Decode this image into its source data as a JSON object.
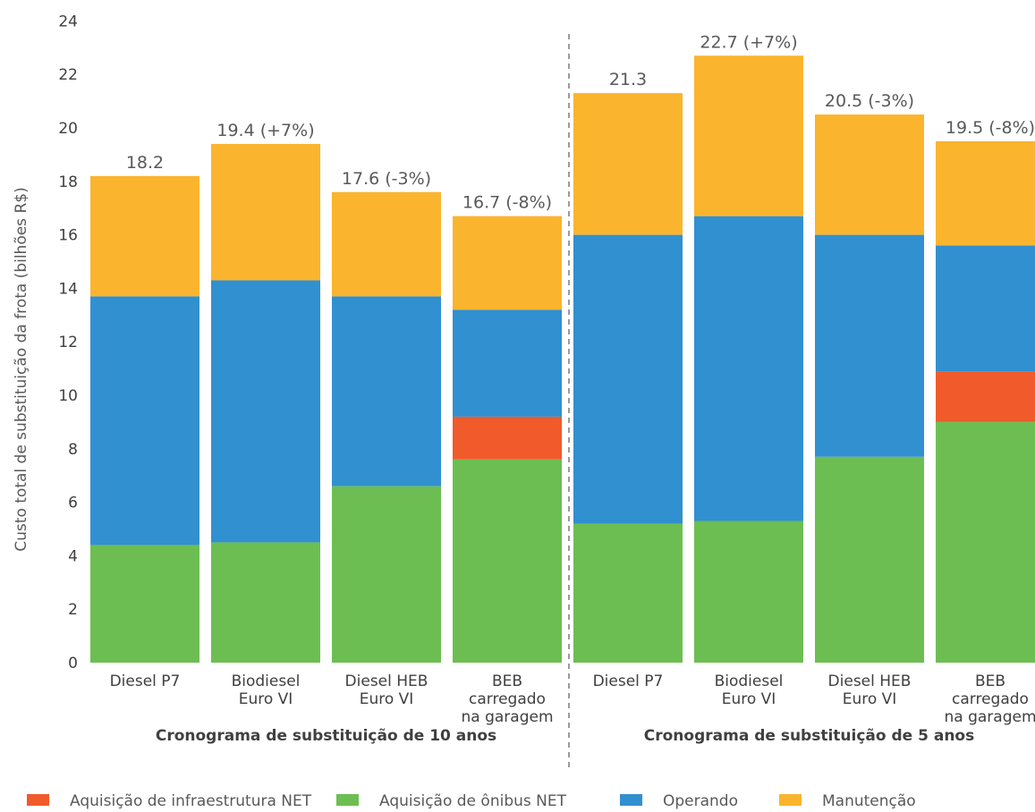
{
  "chart_data": {
    "type": "bar",
    "stacked": true,
    "ylabel": "Custo total de substituição da frota (bilhões R$)",
    "ylim": [
      0,
      24
    ],
    "yticks": [
      0,
      2,
      4,
      6,
      8,
      10,
      12,
      14,
      16,
      18,
      20,
      22,
      24
    ],
    "grid": false,
    "legend_position": "bottom",
    "categories": [
      [
        "Diesel P7"
      ],
      [
        "Biodiesel",
        "Euro VI"
      ],
      [
        "Diesel HEB",
        "Euro VI"
      ],
      [
        "BEB",
        "carregado",
        "na garagem"
      ],
      [
        "Diesel P7"
      ],
      [
        "Biodiesel",
        "Euro VI"
      ],
      [
        "Diesel HEB",
        "Euro VI"
      ],
      [
        "BEB",
        "carregado",
        "na garagem"
      ]
    ],
    "groups": [
      {
        "label": "Cronograma de substituição de 10 anos",
        "count": 4
      },
      {
        "label": "Cronograma de substituição de 5 anos",
        "count": 4
      }
    ],
    "totals": [
      "18.2",
      "19.4 (+7%)",
      "17.6 (-3%)",
      "16.7 (-8%)",
      "21.3",
      "22.7 (+7%)",
      "20.5 (-3%)",
      "19.5 (-8%)"
    ],
    "series": [
      {
        "name": "Aquisição de ônibus NET",
        "color": "#6dbe52",
        "values": [
          4.4,
          4.5,
          6.6,
          7.6,
          5.2,
          5.3,
          7.7,
          9.0
        ]
      },
      {
        "name": "Aquisição de infraestrutura NET",
        "color": "#f15a2b",
        "values": [
          0,
          0,
          0,
          1.6,
          0,
          0,
          0,
          1.9
        ]
      },
      {
        "name": "Operando",
        "color": "#3190d0",
        "values": [
          9.3,
          9.8,
          7.1,
          4.0,
          10.8,
          11.4,
          8.3,
          4.7
        ]
      },
      {
        "name": "Manutenção",
        "color": "#fbb42d",
        "values": [
          4.5,
          5.1,
          3.9,
          3.5,
          5.3,
          6.0,
          4.5,
          3.9
        ]
      }
    ],
    "legend_order": [
      "Aquisição de infraestrutura NET",
      "Aquisição de ônibus NET",
      "Operando",
      "Manutenção"
    ]
  }
}
